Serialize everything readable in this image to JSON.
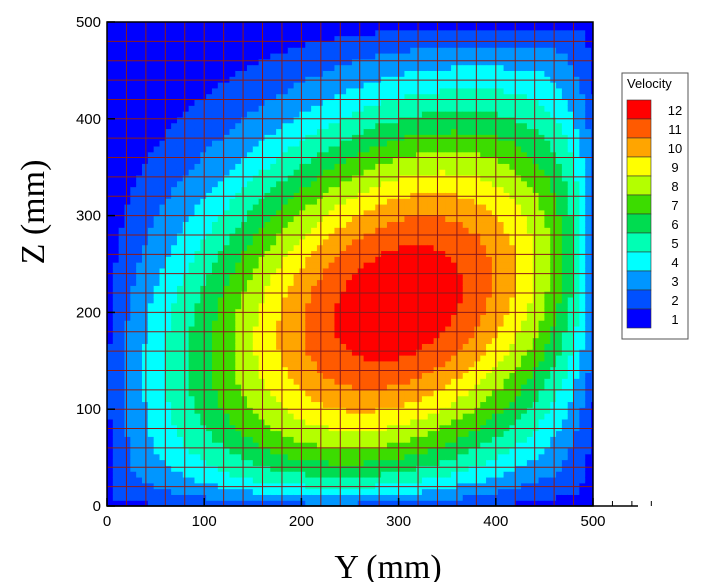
{
  "chart_data": {
    "type": "heatmap",
    "subtype": "contour",
    "xlabel": "Y (mm)",
    "ylabel": "Z (mm)",
    "xlim": [
      0,
      500
    ],
    "ylim": [
      0,
      500
    ],
    "x_ticks": [
      "0",
      "100",
      "200",
      "300",
      "400",
      "500"
    ],
    "y_ticks": [
      "0",
      "100",
      "200",
      "300",
      "400",
      "500"
    ],
    "grid": true,
    "grid_spacing": 20,
    "grid_color": "#8b1a1a",
    "legend": {
      "title": "Velocity",
      "placement": "right",
      "levels": [
        "12",
        "11",
        "10",
        "9",
        "8",
        "7",
        "6",
        "5",
        "4",
        "3",
        "2",
        "1"
      ],
      "colors": [
        "#ff0000",
        "#ff5a00",
        "#ffa500",
        "#ffff00",
        "#b4ff00",
        "#3cdc00",
        "#00dc50",
        "#00ffb4",
        "#00ffff",
        "#0096ff",
        "#0050ff",
        "#0000ff"
      ]
    },
    "field": {
      "peak_value": 12.9,
      "peak_center": [
        300,
        210
      ],
      "min_value": 1,
      "description_levels": "velocity decreases radially from the core (about Y=300, Z=210 mm) toward the duct walls"
    }
  }
}
